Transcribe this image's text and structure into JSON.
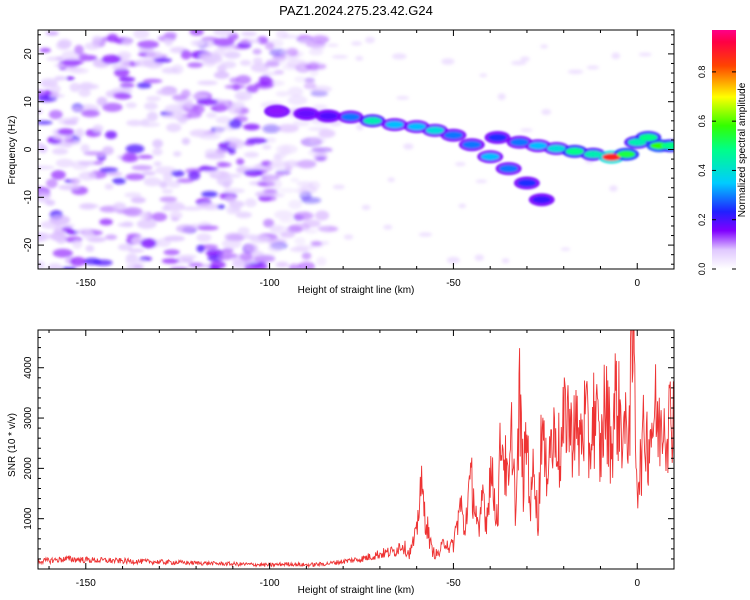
{
  "figure_title": "PAZ1.2024.275.23.42.G24",
  "chart_data": [
    {
      "type": "heatmap",
      "xlabel": "Height of straight line (km)",
      "ylabel": "Frequency (Hz)",
      "xlim": [
        -163,
        10
      ],
      "ylim": [
        -25,
        25
      ],
      "x_ticks": [
        -150,
        -100,
        -50,
        0
      ],
      "x_tick_labels": [
        "-150",
        "-100",
        "-50",
        "0"
      ],
      "y_ticks": [
        -20,
        -10,
        0,
        10,
        20
      ],
      "y_tick_labels": [
        "-20",
        "-10",
        "0",
        "10",
        "20"
      ],
      "colorbar": {
        "label": "Normalized spectral amplitude",
        "range": [
          0,
          0.97
        ],
        "ticks": [
          0,
          0.2,
          0.4,
          0.6,
          0.8
        ],
        "tick_labels": [
          "0.0",
          "0.2",
          "0.4",
          "0.6",
          "0.8"
        ],
        "colormap": "rainbow (white-violet-blue-cyan-green-yellow-red-magenta)"
      },
      "noise_region": {
        "x_range": [
          -163,
          -88
        ],
        "y_range": [
          -25,
          25
        ],
        "typical_amplitude": 0.1
      },
      "ridge": [
        {
          "x": -98,
          "y": 8.0,
          "v": 0.15
        },
        {
          "x": -90,
          "y": 7.5,
          "v": 0.18
        },
        {
          "x": -84,
          "y": 7.0,
          "v": 0.2
        },
        {
          "x": -78,
          "y": 6.8,
          "v": 0.3
        },
        {
          "x": -72,
          "y": 6.0,
          "v": 0.45
        },
        {
          "x": -66,
          "y": 5.2,
          "v": 0.35
        },
        {
          "x": -60,
          "y": 4.8,
          "v": 0.35
        },
        {
          "x": -55,
          "y": 4.0,
          "v": 0.4
        },
        {
          "x": -50,
          "y": 3.0,
          "v": 0.3
        },
        {
          "x": -45,
          "y": 1.0,
          "v": 0.3
        },
        {
          "x": -40,
          "y": -1.5,
          "v": 0.35
        },
        {
          "x": -35,
          "y": -4.0,
          "v": 0.3
        },
        {
          "x": -30,
          "y": -7.0,
          "v": 0.25
        },
        {
          "x": -26,
          "y": -10.5,
          "v": 0.22
        },
        {
          "x": -38,
          "y": 2.5,
          "v": 0.25
        },
        {
          "x": -32,
          "y": 1.5,
          "v": 0.3
        },
        {
          "x": -27,
          "y": 0.8,
          "v": 0.35
        },
        {
          "x": -22,
          "y": 0.2,
          "v": 0.4
        },
        {
          "x": -17,
          "y": -0.4,
          "v": 0.5
        },
        {
          "x": -12,
          "y": -1.0,
          "v": 0.45
        },
        {
          "x": -7,
          "y": -1.6,
          "v": 0.9
        },
        {
          "x": -3,
          "y": -1.0,
          "v": 0.55
        },
        {
          "x": 0,
          "y": 1.5,
          "v": 0.45
        },
        {
          "x": 3,
          "y": 2.5,
          "v": 0.5
        },
        {
          "x": 6,
          "y": 0.8,
          "v": 0.6
        },
        {
          "x": 9,
          "y": 0.8,
          "v": 0.5
        }
      ]
    },
    {
      "type": "line",
      "xlabel": "Height of straight line (km)",
      "ylabel": "SNR (10 * v/v)",
      "xlim": [
        -163,
        10
      ],
      "ylim": [
        0,
        4750
      ],
      "x_ticks": [
        -150,
        -100,
        -50,
        0
      ],
      "x_tick_labels": [
        "-150",
        "-100",
        "-50",
        "0"
      ],
      "y_ticks": [
        1000,
        2000,
        3000,
        4000
      ],
      "y_tick_labels": [
        "1000",
        "2000",
        "3000",
        "4000"
      ],
      "series": [
        {
          "color": "#ee3333",
          "x": [
            -163,
            -155,
            -150,
            -145,
            -140,
            -135,
            -130,
            -125,
            -120,
            -115,
            -110,
            -105,
            -100,
            -95,
            -90,
            -85,
            -80,
            -75,
            -70,
            -66,
            -64,
            -62,
            -60,
            -59,
            -58,
            -57,
            -56,
            -55,
            -54,
            -53,
            -52,
            -51,
            -50,
            -49,
            -48,
            -47,
            -46,
            -45,
            -44,
            -43,
            -42,
            -41,
            -40,
            -39,
            -38,
            -37,
            -36,
            -35,
            -34,
            -33,
            -32,
            -31,
            -30,
            -29,
            -28,
            -27,
            -26,
            -25,
            -24,
            -23,
            -22,
            -21,
            -20,
            -19,
            -18,
            -17,
            -16,
            -15,
            -14,
            -13,
            -12,
            -11,
            -10,
            -9,
            -8,
            -7,
            -6,
            -5,
            -4,
            -3,
            -2,
            -1.5,
            -1,
            -0.5,
            0,
            1,
            2,
            3,
            4,
            5,
            6,
            7,
            8,
            9,
            10
          ],
          "y": [
            150,
            200,
            180,
            170,
            160,
            150,
            140,
            130,
            120,
            110,
            100,
            90,
            80,
            100,
            80,
            100,
            150,
            200,
            300,
            350,
            500,
            300,
            700,
            1700,
            1200,
            800,
            400,
            300,
            300,
            450,
            600,
            400,
            500,
            900,
            1300,
            700,
            1500,
            1700,
            1200,
            600,
            1600,
            900,
            2000,
            1500,
            1000,
            2800,
            2100,
            1500,
            2800,
            1000,
            3400,
            1700,
            2700,
            1200,
            2300,
            700,
            3100,
            1800,
            2600,
            2400,
            2900,
            2100,
            2800,
            3300,
            2600,
            3100,
            2400,
            2800,
            3000,
            2300,
            3100,
            2900,
            2200,
            3200,
            3000,
            2400,
            3400,
            3100,
            2800,
            2600,
            3300,
            4000,
            4700,
            3000,
            1700,
            2100,
            2800,
            2500,
            2900,
            3100,
            2700,
            3200,
            2900,
            3000,
            3300
          ]
        }
      ]
    }
  ]
}
